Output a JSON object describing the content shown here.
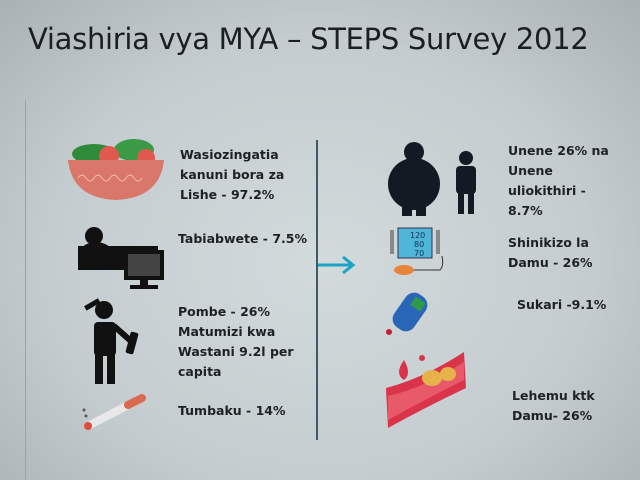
{
  "title": "Viashiria vya MYA – STEPS Survey 2012",
  "left": [
    {
      "icon": "salad-bowl-icon",
      "lines": [
        "Wasiozingatia",
        "kanuni bora za",
        "Lishe - 97.2%"
      ]
    },
    {
      "icon": "couch-tv-icon",
      "lines": [
        "Tabiabwete - 7.5%"
      ]
    },
    {
      "icon": "drinking-person-icon",
      "lines": [
        "Pombe - 26%",
        "Matumizi kwa",
        "Wastani 9.2l per",
        "capita"
      ]
    },
    {
      "icon": "cigarette-icon",
      "lines": [
        "Tumbaku - 14%"
      ]
    }
  ],
  "right": [
    {
      "icon": "obesity-icon",
      "lines": [
        "Unene 26% na",
        "Unene",
        "uliokithiri -",
        "8.7%"
      ]
    },
    {
      "icon": "blood-pressure-monitor-icon",
      "lines": [
        "Shinikizo la",
        "Damu - 26%"
      ],
      "readings": [
        "120",
        "80",
        "70"
      ]
    },
    {
      "icon": "glucose-meter-icon",
      "lines": [
        "Sukari -9.1%"
      ]
    },
    {
      "icon": "blood-vessel-cholesterol-icon",
      "lines": [
        "Lehemu ktk",
        "Damu- 26%"
      ]
    }
  ],
  "colors": {
    "arrow": "#1aa3c4",
    "divider": "#3d5a66"
  }
}
